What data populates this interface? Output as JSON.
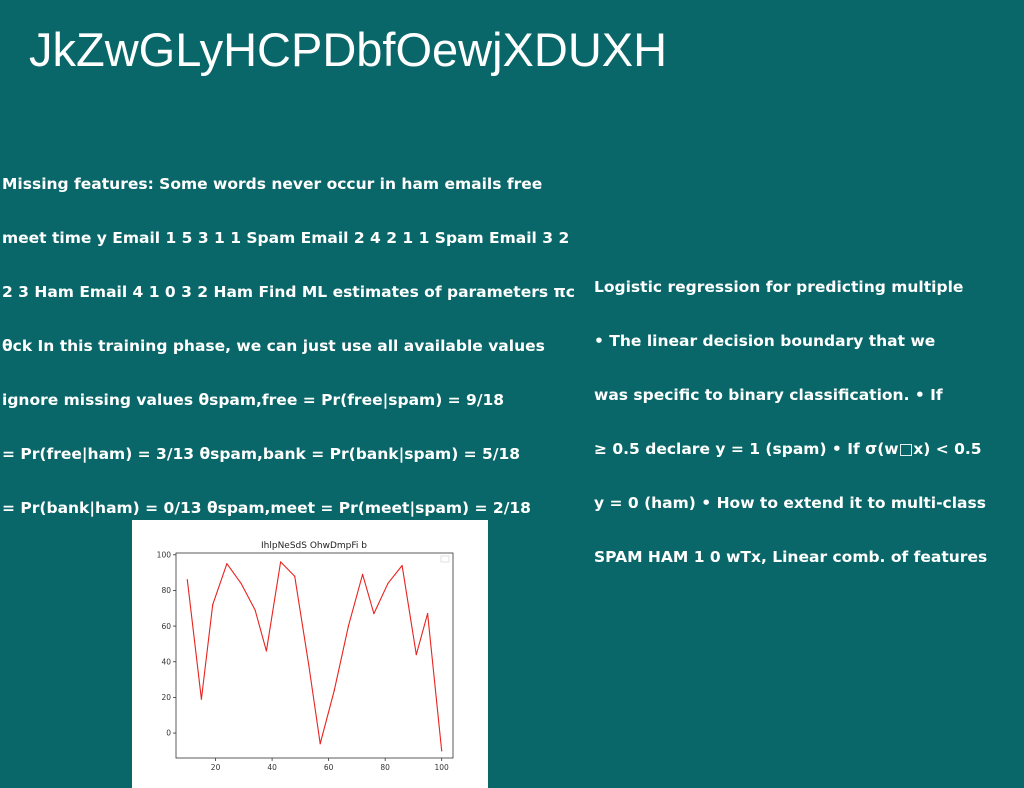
{
  "slide": {
    "title": "JkZwGLyHCPDbfOewjXDUXH",
    "left_text_lines": [
      "Missing features: Some words never occur in ham emails free",
      "meet time y Email 1 5 3 1 1 Spam Email 2 4 2 1 1 Spam Email 3 2",
      "2 3 Ham Email 4 1 0 3 2 Ham Find ML estimates of parameters πc",
      "θck In this training phase, we can just use all available values",
      "ignore missing values θspam,free = Pr(free|spam) = 9/18",
      "= Pr(free|ham) = 3/13 θspam,bank = Pr(bank|spam) = 5/18",
      "= Pr(bank|ham) = 0/13 θspam,meet = Pr(meet|spam) = 2/18"
    ],
    "right_text_lines": [
      "Logistic regression for predicting multiple",
      "• The linear decision boundary that we",
      "was specific to binary classification. • If",
      "≥ 0.5 declare y = 1 (spam) • If σ(w□x) < 0.5",
      "y = 0 (ham) • How to extend it to multi-class",
      "SPAM HAM 1 0 wTx, Linear comb. of features"
    ]
  },
  "colors": {
    "background": "#0a6769",
    "text": "#ffffff",
    "line": "#e8231f"
  },
  "chart_data": {
    "type": "line",
    "title": "IhlpNeSdS OhwDmpFi b",
    "xlabel": "",
    "ylabel": "",
    "xlim": [
      6,
      104
    ],
    "ylim": [
      -14,
      101
    ],
    "xticks": [
      20,
      40,
      60,
      80,
      100
    ],
    "yticks": [
      0,
      20,
      40,
      60,
      80,
      100
    ],
    "grid": false,
    "legend": "top-right (empty)",
    "series": [
      {
        "color": "#e8231f",
        "x": [
          10,
          15,
          19,
          24,
          29,
          34,
          38,
          43,
          48,
          53,
          57,
          62,
          67,
          72,
          76,
          81,
          86,
          91,
          95,
          100
        ],
        "values": [
          86,
          19,
          72,
          95,
          84,
          69,
          46,
          96,
          88,
          38,
          -6,
          24,
          60,
          89,
          67,
          84,
          94,
          44,
          67,
          -10
        ]
      }
    ]
  }
}
